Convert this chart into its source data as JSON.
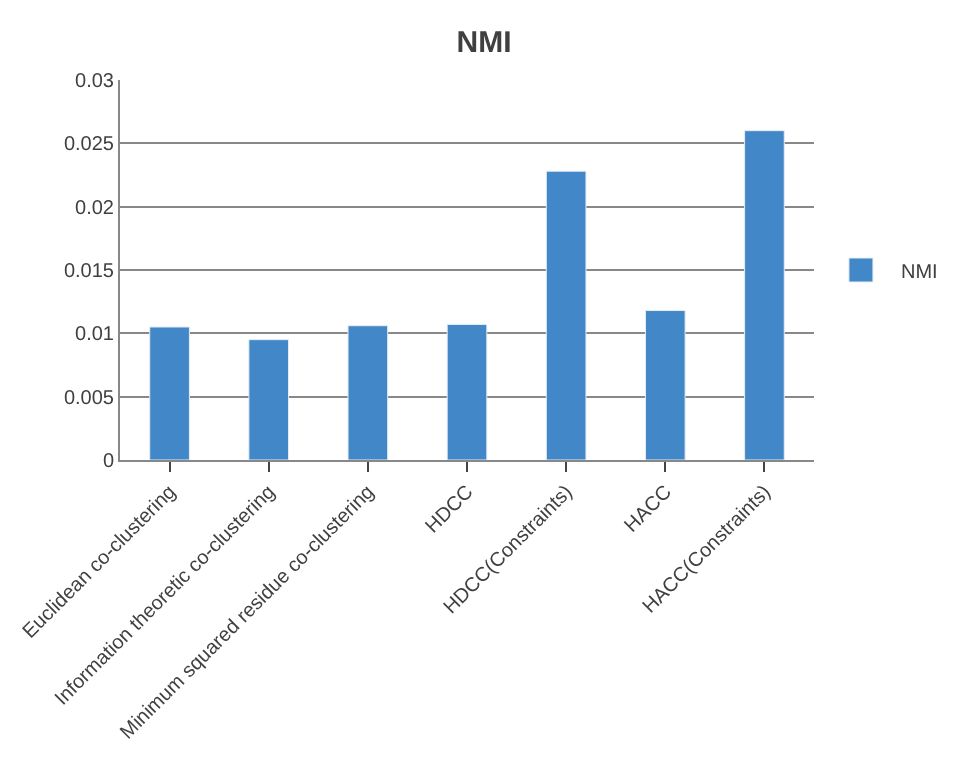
{
  "chart_data": {
    "type": "bar",
    "title": "NMI",
    "categories": [
      "Euclidean co-clustering",
      "Information theoretic co-clustering",
      "Minimum squared residue co-clustering",
      "HDCC",
      "HDCC(Constraints)",
      "HACC",
      "HACC(Constraints)"
    ],
    "series": [
      {
        "name": "NMI",
        "color": "#4287c8",
        "values": [
          0.0105,
          0.0095,
          0.0106,
          0.0107,
          0.0228,
          0.0118,
          0.026
        ]
      }
    ],
    "ylim": [
      0,
      0.03
    ],
    "yticks": [
      0,
      0.005,
      0.01,
      0.015,
      0.02,
      0.025,
      0.03
    ],
    "grid": "y",
    "legend": "right"
  }
}
